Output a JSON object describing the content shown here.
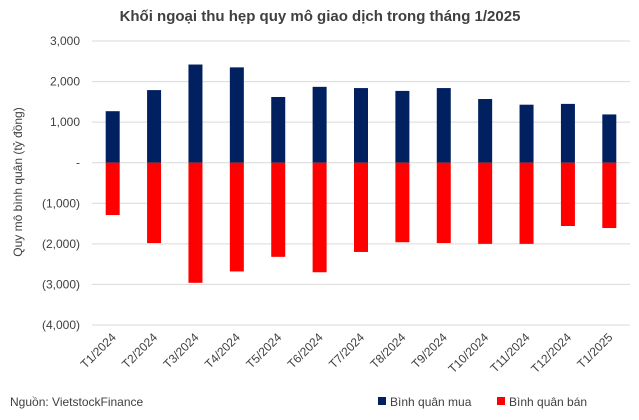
{
  "chart_data": {
    "type": "bar",
    "title": "Khối ngoại thu hẹp quy mô giao dịch trong tháng 1/2025",
    "ylabel": "Quy mô bình quân (tỷ đồng)",
    "xlabel": "",
    "categories": [
      "T1/2024",
      "T2/2024",
      "T3/2024",
      "T4/2024",
      "T5/2024",
      "T6/2024",
      "T7/2024",
      "T8/2024",
      "T9/2024",
      "T10/2024",
      "T11/2024",
      "T12/2024",
      "T1/2025"
    ],
    "series": [
      {
        "name": "Bình quân mua",
        "color": "#002060",
        "values": [
          1270,
          1790,
          2420,
          2350,
          1620,
          1870,
          1840,
          1770,
          1840,
          1570,
          1430,
          1450,
          1190
        ]
      },
      {
        "name": "Bình quân bán",
        "color": "#ff0000",
        "values": [
          -1290,
          -1980,
          -2960,
          -2680,
          -2320,
          -2700,
          -2200,
          -1960,
          -1980,
          -2000,
          -2000,
          -1560,
          -1610
        ]
      }
    ],
    "ylim": [
      -4000,
      3000
    ],
    "yticks": [
      3000,
      2000,
      1000,
      0,
      -1000,
      -2000,
      -3000,
      -4000
    ],
    "ytick_labels": [
      "3,000",
      "2,000",
      "1,000",
      "-",
      "(1,000)",
      "(2,000)",
      "(3,000)",
      "(4,000)"
    ],
    "grid": true,
    "stacked": true,
    "legend_position": "bottom-right"
  },
  "source": "Nguồn: VietstockFinance"
}
